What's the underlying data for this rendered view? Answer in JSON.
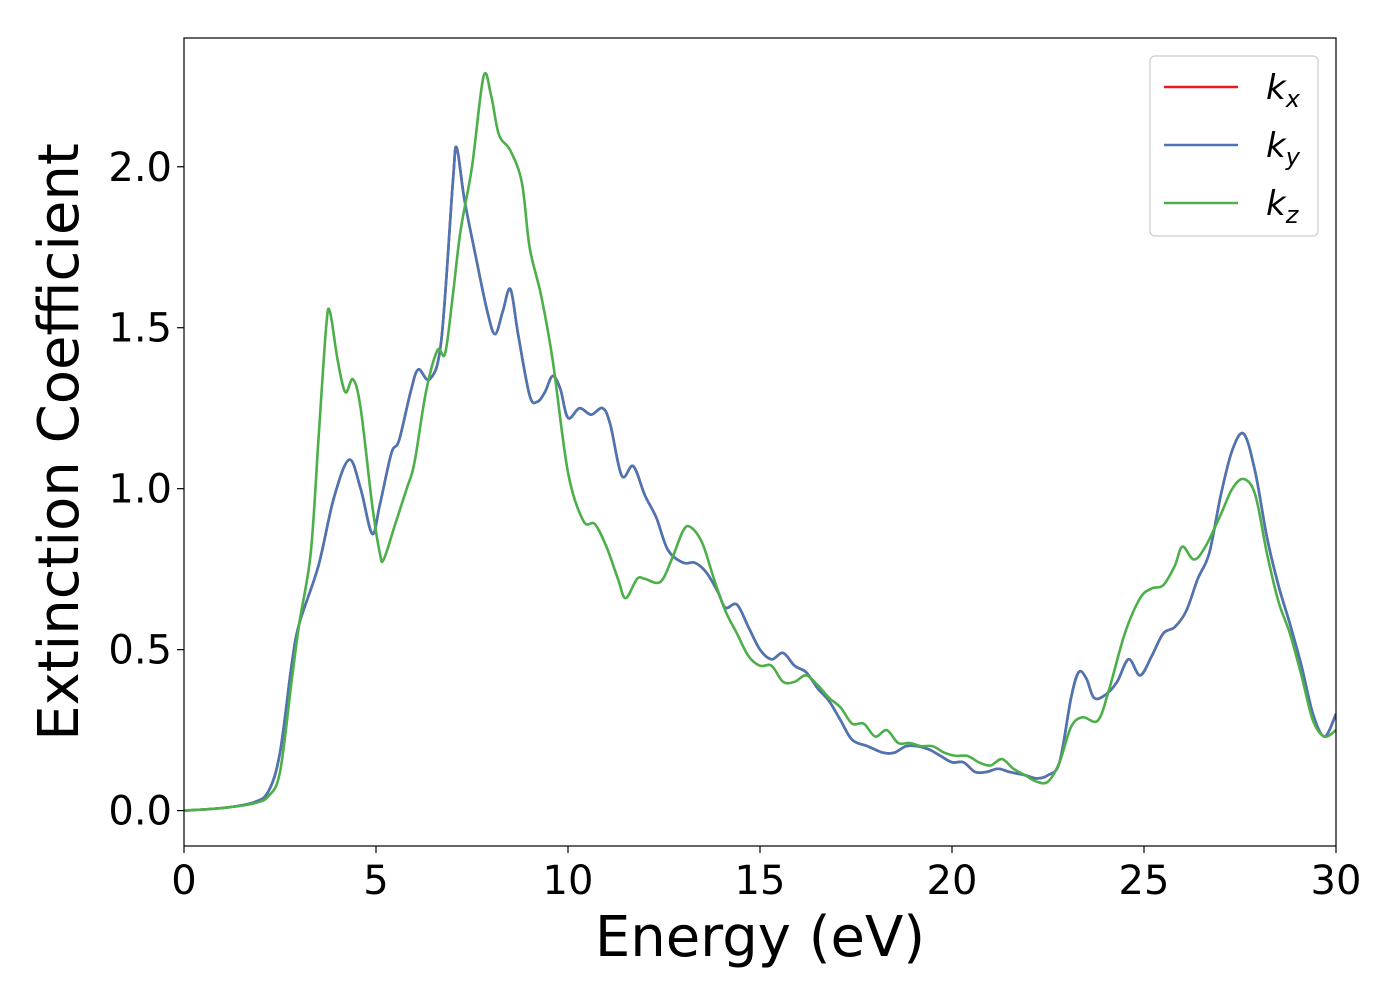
{
  "chart_data": {
    "type": "line",
    "title": "",
    "xlabel": "Energy (eV)",
    "ylabel": "Extinction Coefficient",
    "xlim": [
      0,
      30
    ],
    "ylim": [
      -0.11,
      2.4
    ],
    "xticks": [
      0,
      5,
      10,
      15,
      20,
      25,
      30
    ],
    "xtick_labels": [
      "0",
      "5",
      "10",
      "15",
      "20",
      "25",
      "30"
    ],
    "yticks": [
      0.0,
      0.5,
      1.0,
      1.5,
      2.0
    ],
    "ytick_labels": [
      "0.0",
      "0.5",
      "1.0",
      "1.5",
      "2.0"
    ],
    "grid": false,
    "legend_position": "top-right",
    "series": [
      {
        "name": "k_x",
        "legend_base": "k",
        "legend_sub": "x",
        "color": "#e41a1c",
        "points": [
          [
            0,
            0
          ],
          [
            1,
            0.008
          ],
          [
            1.8,
            0.025
          ],
          [
            2.2,
            0.06
          ],
          [
            2.5,
            0.18
          ],
          [
            2.8,
            0.45
          ],
          [
            3.0,
            0.58
          ],
          [
            3.5,
            0.76
          ],
          [
            3.9,
            0.97
          ],
          [
            4.3,
            1.09
          ],
          [
            4.6,
            1.0
          ],
          [
            4.9,
            0.86
          ],
          [
            5.1,
            0.95
          ],
          [
            5.4,
            1.11
          ],
          [
            5.6,
            1.15
          ],
          [
            5.9,
            1.3
          ],
          [
            6.1,
            1.37
          ],
          [
            6.4,
            1.34
          ],
          [
            6.7,
            1.46
          ],
          [
            7.0,
            1.95
          ],
          [
            7.1,
            2.06
          ],
          [
            7.3,
            1.9
          ],
          [
            7.6,
            1.72
          ],
          [
            7.9,
            1.55
          ],
          [
            8.1,
            1.48
          ],
          [
            8.3,
            1.55
          ],
          [
            8.5,
            1.62
          ],
          [
            8.7,
            1.48
          ],
          [
            9.0,
            1.29
          ],
          [
            9.2,
            1.27
          ],
          [
            9.4,
            1.3
          ],
          [
            9.6,
            1.35
          ],
          [
            9.8,
            1.31
          ],
          [
            10.0,
            1.22
          ],
          [
            10.3,
            1.25
          ],
          [
            10.6,
            1.23
          ],
          [
            10.9,
            1.25
          ],
          [
            11.1,
            1.2
          ],
          [
            11.4,
            1.04
          ],
          [
            11.7,
            1.07
          ],
          [
            12.0,
            0.98
          ],
          [
            12.3,
            0.91
          ],
          [
            12.6,
            0.81
          ],
          [
            13.0,
            0.77
          ],
          [
            13.3,
            0.77
          ],
          [
            13.6,
            0.74
          ],
          [
            13.9,
            0.68
          ],
          [
            14.1,
            0.63
          ],
          [
            14.4,
            0.64
          ],
          [
            14.7,
            0.57
          ],
          [
            15.0,
            0.5
          ],
          [
            15.3,
            0.47
          ],
          [
            15.6,
            0.49
          ],
          [
            15.9,
            0.45
          ],
          [
            16.2,
            0.43
          ],
          [
            16.5,
            0.38
          ],
          [
            16.8,
            0.34
          ],
          [
            17.1,
            0.28
          ],
          [
            17.4,
            0.22
          ],
          [
            17.8,
            0.2
          ],
          [
            18.2,
            0.18
          ],
          [
            18.5,
            0.18
          ],
          [
            18.8,
            0.2
          ],
          [
            19.1,
            0.2
          ],
          [
            19.4,
            0.19
          ],
          [
            19.7,
            0.17
          ],
          [
            20.0,
            0.15
          ],
          [
            20.3,
            0.15
          ],
          [
            20.6,
            0.12
          ],
          [
            20.9,
            0.12
          ],
          [
            21.2,
            0.13
          ],
          [
            21.5,
            0.12
          ],
          [
            21.9,
            0.11
          ],
          [
            22.2,
            0.1
          ],
          [
            22.5,
            0.11
          ],
          [
            22.8,
            0.15
          ],
          [
            23.1,
            0.35
          ],
          [
            23.3,
            0.43
          ],
          [
            23.5,
            0.41
          ],
          [
            23.7,
            0.35
          ],
          [
            24.0,
            0.36
          ],
          [
            24.3,
            0.4
          ],
          [
            24.6,
            0.47
          ],
          [
            24.9,
            0.42
          ],
          [
            25.2,
            0.48
          ],
          [
            25.5,
            0.55
          ],
          [
            25.8,
            0.57
          ],
          [
            26.1,
            0.62
          ],
          [
            26.4,
            0.72
          ],
          [
            26.7,
            0.8
          ],
          [
            27.0,
            0.98
          ],
          [
            27.3,
            1.12
          ],
          [
            27.6,
            1.17
          ],
          [
            27.9,
            1.05
          ],
          [
            28.2,
            0.85
          ],
          [
            28.5,
            0.7
          ],
          [
            28.8,
            0.58
          ],
          [
            29.1,
            0.45
          ],
          [
            29.4,
            0.3
          ],
          [
            29.7,
            0.23
          ],
          [
            30.0,
            0.3
          ]
        ]
      },
      {
        "name": "k_y",
        "legend_base": "k",
        "legend_sub": "y",
        "color": "#4a77b4",
        "points": [
          [
            0,
            0
          ],
          [
            1,
            0.008
          ],
          [
            1.8,
            0.025
          ],
          [
            2.2,
            0.06
          ],
          [
            2.5,
            0.18
          ],
          [
            2.8,
            0.45
          ],
          [
            3.0,
            0.58
          ],
          [
            3.5,
            0.76
          ],
          [
            3.9,
            0.97
          ],
          [
            4.3,
            1.09
          ],
          [
            4.6,
            1.0
          ],
          [
            4.9,
            0.86
          ],
          [
            5.1,
            0.95
          ],
          [
            5.4,
            1.11
          ],
          [
            5.6,
            1.15
          ],
          [
            5.9,
            1.3
          ],
          [
            6.1,
            1.37
          ],
          [
            6.4,
            1.34
          ],
          [
            6.7,
            1.46
          ],
          [
            7.0,
            1.95
          ],
          [
            7.1,
            2.06
          ],
          [
            7.3,
            1.9
          ],
          [
            7.6,
            1.72
          ],
          [
            7.9,
            1.55
          ],
          [
            8.1,
            1.48
          ],
          [
            8.3,
            1.55
          ],
          [
            8.5,
            1.62
          ],
          [
            8.7,
            1.48
          ],
          [
            9.0,
            1.29
          ],
          [
            9.2,
            1.27
          ],
          [
            9.4,
            1.3
          ],
          [
            9.6,
            1.35
          ],
          [
            9.8,
            1.31
          ],
          [
            10.0,
            1.22
          ],
          [
            10.3,
            1.25
          ],
          [
            10.6,
            1.23
          ],
          [
            10.9,
            1.25
          ],
          [
            11.1,
            1.2
          ],
          [
            11.4,
            1.04
          ],
          [
            11.7,
            1.07
          ],
          [
            12.0,
            0.98
          ],
          [
            12.3,
            0.91
          ],
          [
            12.6,
            0.81
          ],
          [
            13.0,
            0.77
          ],
          [
            13.3,
            0.77
          ],
          [
            13.6,
            0.74
          ],
          [
            13.9,
            0.68
          ],
          [
            14.1,
            0.63
          ],
          [
            14.4,
            0.64
          ],
          [
            14.7,
            0.57
          ],
          [
            15.0,
            0.5
          ],
          [
            15.3,
            0.47
          ],
          [
            15.6,
            0.49
          ],
          [
            15.9,
            0.45
          ],
          [
            16.2,
            0.43
          ],
          [
            16.5,
            0.38
          ],
          [
            16.8,
            0.34
          ],
          [
            17.1,
            0.28
          ],
          [
            17.4,
            0.22
          ],
          [
            17.8,
            0.2
          ],
          [
            18.2,
            0.18
          ],
          [
            18.5,
            0.18
          ],
          [
            18.8,
            0.2
          ],
          [
            19.1,
            0.2
          ],
          [
            19.4,
            0.19
          ],
          [
            19.7,
            0.17
          ],
          [
            20.0,
            0.15
          ],
          [
            20.3,
            0.15
          ],
          [
            20.6,
            0.12
          ],
          [
            20.9,
            0.12
          ],
          [
            21.2,
            0.13
          ],
          [
            21.5,
            0.12
          ],
          [
            21.9,
            0.11
          ],
          [
            22.2,
            0.1
          ],
          [
            22.5,
            0.11
          ],
          [
            22.8,
            0.15
          ],
          [
            23.1,
            0.35
          ],
          [
            23.3,
            0.43
          ],
          [
            23.5,
            0.41
          ],
          [
            23.7,
            0.35
          ],
          [
            24.0,
            0.36
          ],
          [
            24.3,
            0.4
          ],
          [
            24.6,
            0.47
          ],
          [
            24.9,
            0.42
          ],
          [
            25.2,
            0.48
          ],
          [
            25.5,
            0.55
          ],
          [
            25.8,
            0.57
          ],
          [
            26.1,
            0.62
          ],
          [
            26.4,
            0.72
          ],
          [
            26.7,
            0.8
          ],
          [
            27.0,
            0.98
          ],
          [
            27.3,
            1.12
          ],
          [
            27.6,
            1.17
          ],
          [
            27.9,
            1.05
          ],
          [
            28.2,
            0.85
          ],
          [
            28.5,
            0.7
          ],
          [
            28.8,
            0.58
          ],
          [
            29.1,
            0.45
          ],
          [
            29.4,
            0.3
          ],
          [
            29.7,
            0.23
          ],
          [
            30.0,
            0.3
          ]
        ]
      },
      {
        "name": "k_z",
        "legend_base": "k",
        "legend_sub": "z",
        "color": "#4daf4a",
        "points": [
          [
            0,
            0
          ],
          [
            1,
            0.008
          ],
          [
            1.8,
            0.022
          ],
          [
            2.2,
            0.045
          ],
          [
            2.5,
            0.12
          ],
          [
            2.8,
            0.4
          ],
          [
            3.0,
            0.58
          ],
          [
            3.3,
            0.8
          ],
          [
            3.5,
            1.15
          ],
          [
            3.7,
            1.5
          ],
          [
            3.8,
            1.55
          ],
          [
            4.0,
            1.4
          ],
          [
            4.2,
            1.3
          ],
          [
            4.4,
            1.34
          ],
          [
            4.6,
            1.25
          ],
          [
            4.9,
            0.95
          ],
          [
            5.1,
            0.8
          ],
          [
            5.2,
            0.78
          ],
          [
            5.5,
            0.89
          ],
          [
            5.8,
            1.0
          ],
          [
            6.0,
            1.08
          ],
          [
            6.3,
            1.3
          ],
          [
            6.6,
            1.43
          ],
          [
            6.8,
            1.42
          ],
          [
            7.0,
            1.6
          ],
          [
            7.2,
            1.8
          ],
          [
            7.5,
            2.0
          ],
          [
            7.8,
            2.28
          ],
          [
            8.0,
            2.22
          ],
          [
            8.2,
            2.1
          ],
          [
            8.5,
            2.05
          ],
          [
            8.8,
            1.95
          ],
          [
            9.0,
            1.75
          ],
          [
            9.3,
            1.6
          ],
          [
            9.6,
            1.4
          ],
          [
            10.0,
            1.05
          ],
          [
            10.4,
            0.9
          ],
          [
            10.7,
            0.89
          ],
          [
            11.0,
            0.82
          ],
          [
            11.3,
            0.72
          ],
          [
            11.5,
            0.66
          ],
          [
            11.8,
            0.72
          ],
          [
            12.0,
            0.72
          ],
          [
            12.4,
            0.71
          ],
          [
            12.7,
            0.78
          ],
          [
            13.0,
            0.87
          ],
          [
            13.2,
            0.88
          ],
          [
            13.5,
            0.83
          ],
          [
            13.8,
            0.72
          ],
          [
            14.1,
            0.62
          ],
          [
            14.4,
            0.55
          ],
          [
            14.7,
            0.48
          ],
          [
            15.0,
            0.45
          ],
          [
            15.3,
            0.45
          ],
          [
            15.6,
            0.4
          ],
          [
            15.9,
            0.4
          ],
          [
            16.2,
            0.42
          ],
          [
            16.5,
            0.39
          ],
          [
            16.8,
            0.35
          ],
          [
            17.1,
            0.32
          ],
          [
            17.4,
            0.27
          ],
          [
            17.7,
            0.27
          ],
          [
            18.0,
            0.23
          ],
          [
            18.3,
            0.25
          ],
          [
            18.6,
            0.21
          ],
          [
            18.9,
            0.21
          ],
          [
            19.2,
            0.2
          ],
          [
            19.5,
            0.2
          ],
          [
            19.8,
            0.18
          ],
          [
            20.1,
            0.17
          ],
          [
            20.4,
            0.17
          ],
          [
            20.7,
            0.15
          ],
          [
            21.0,
            0.14
          ],
          [
            21.3,
            0.16
          ],
          [
            21.6,
            0.13
          ],
          [
            21.9,
            0.11
          ],
          [
            22.2,
            0.09
          ],
          [
            22.5,
            0.09
          ],
          [
            22.8,
            0.15
          ],
          [
            23.1,
            0.26
          ],
          [
            23.4,
            0.29
          ],
          [
            23.8,
            0.28
          ],
          [
            24.1,
            0.38
          ],
          [
            24.5,
            0.55
          ],
          [
            24.9,
            0.66
          ],
          [
            25.2,
            0.69
          ],
          [
            25.5,
            0.7
          ],
          [
            25.8,
            0.76
          ],
          [
            26.0,
            0.82
          ],
          [
            26.3,
            0.78
          ],
          [
            26.6,
            0.82
          ],
          [
            27.0,
            0.92
          ],
          [
            27.3,
            1.0
          ],
          [
            27.6,
            1.03
          ],
          [
            27.9,
            0.98
          ],
          [
            28.2,
            0.8
          ],
          [
            28.5,
            0.65
          ],
          [
            28.8,
            0.55
          ],
          [
            29.1,
            0.42
          ],
          [
            29.4,
            0.28
          ],
          [
            29.7,
            0.23
          ],
          [
            30.0,
            0.25
          ]
        ]
      }
    ]
  }
}
